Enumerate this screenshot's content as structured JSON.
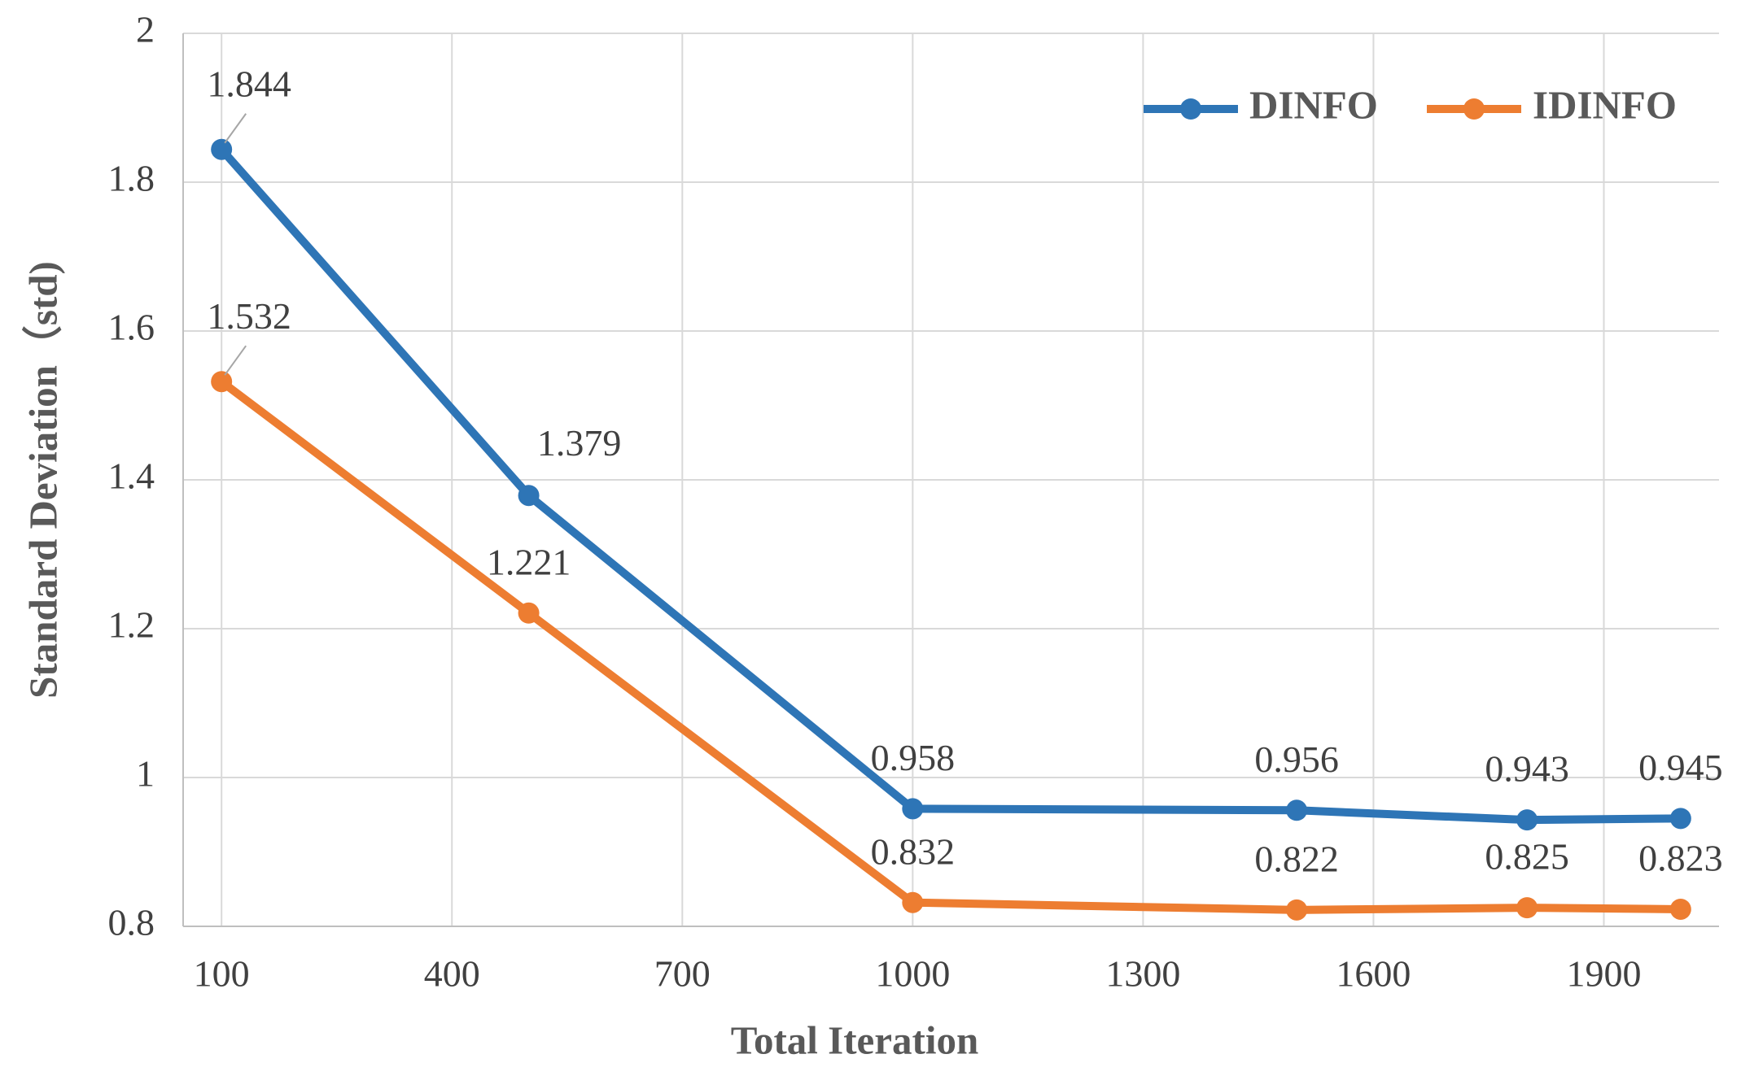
{
  "chart_data": {
    "type": "line",
    "x_label": "Total Iteration",
    "y_label": "Standard Deviation（std)",
    "x": [
      100,
      500,
      1000,
      1500,
      1800,
      2000
    ],
    "series": [
      {
        "name": "DINFO",
        "color": "#2e75b6",
        "values": [
          1.844,
          1.379,
          0.958,
          0.956,
          0.943,
          0.945
        ]
      },
      {
        "name": "IDINFO",
        "color": "#ed7d31",
        "values": [
          1.532,
          1.221,
          0.832,
          0.822,
          0.825,
          0.823
        ]
      }
    ],
    "xlim": [
      50,
      2050
    ],
    "xticks": [
      100,
      400,
      700,
      1000,
      1300,
      1600,
      1900
    ],
    "ylim": [
      0.8,
      2
    ],
    "yticks": [
      0.8,
      1,
      1.2,
      1.4,
      1.6,
      1.8,
      2
    ],
    "grid": true,
    "legend": "top-right",
    "data_labels": true
  }
}
